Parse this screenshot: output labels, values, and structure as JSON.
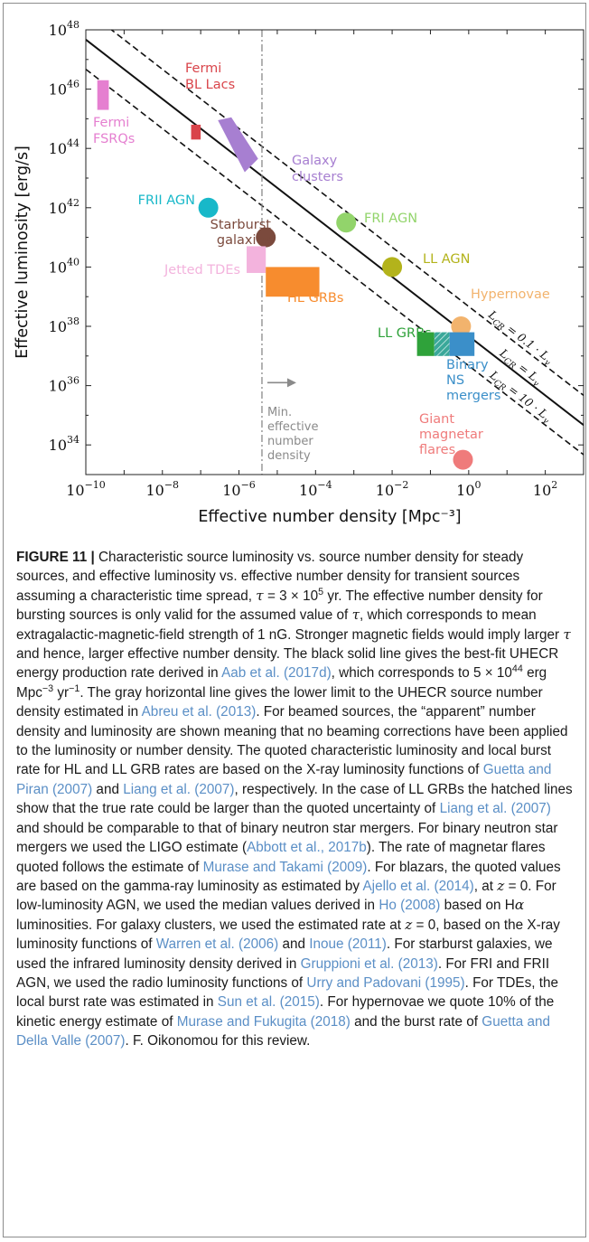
{
  "chart_data": {
    "type": "scatter",
    "xlabel": "Effective number density [Mpc⁻³]",
    "ylabel": "Effective luminosity [erg/s]",
    "x_scale": "log",
    "y_scale": "log",
    "xlim": [
      1e-10,
      1000
    ],
    "ylim": [
      1e+33,
      1e+48
    ],
    "x_ticks": [
      {
        "exp": -10,
        "label": "10",
        "sup": "−10"
      },
      {
        "exp": -8,
        "label": "10",
        "sup": "−8"
      },
      {
        "exp": -6,
        "label": "10",
        "sup": "−6"
      },
      {
        "exp": -4,
        "label": "10",
        "sup": "−4"
      },
      {
        "exp": -2,
        "label": "10",
        "sup": "−2"
      },
      {
        "exp": 0,
        "label": "10",
        "sup": "0"
      },
      {
        "exp": 2,
        "label": "10",
        "sup": "2"
      }
    ],
    "y_ticks": [
      {
        "exp": 34,
        "label": "10",
        "sup": "34"
      },
      {
        "exp": 36,
        "label": "10",
        "sup": "36"
      },
      {
        "exp": 38,
        "label": "10",
        "sup": "38"
      },
      {
        "exp": 40,
        "label": "10",
        "sup": "40"
      },
      {
        "exp": 42,
        "label": "10",
        "sup": "42"
      },
      {
        "exp": 44,
        "label": "10",
        "sup": "44"
      },
      {
        "exp": 46,
        "label": "10",
        "sup": "46"
      },
      {
        "exp": 48,
        "label": "10",
        "sup": "48"
      }
    ],
    "lines": [
      {
        "name": "L_CR = 0.1 · L_γ",
        "style": "dashed",
        "y_at_x1": 38.67,
        "label": "L",
        "label_sub": "CR",
        "label_tail": " = 0.1 · L",
        "label_tail_sub": "γ"
      },
      {
        "name": "L_CR = L_γ",
        "style": "solid",
        "y_at_x1": 37.67,
        "label": "L",
        "label_sub": "CR",
        "label_tail": " = L",
        "label_tail_sub": "γ"
      },
      {
        "name": "L_CR = 10 · L_γ",
        "style": "dashed",
        "y_at_x1": 36.67,
        "label": "L",
        "label_sub": "CR",
        "label_tail": " = 10 · L",
        "label_tail_sub": "γ"
      }
    ],
    "min_density": {
      "x_exp": -5.4,
      "label": [
        "Min.",
        "effective",
        "number",
        "density"
      ],
      "color": "#8a8a8a"
    },
    "sources": [
      {
        "shape": "rect",
        "x": [
          -9.7,
          -9.4
        ],
        "y": [
          45.3,
          46.3
        ],
        "color": "#e57fd0",
        "label": [
          "Fermi",
          "FSRQs"
        ],
        "label_color": "#e57fd0"
      },
      {
        "shape": "rect",
        "x": [
          -7.25,
          -7.0
        ],
        "y": [
          44.3,
          44.8
        ],
        "color": "#d9444a",
        "label": [
          "Fermi",
          "BL Lacs"
        ],
        "label_color": "#d9444a"
      },
      {
        "shape": "polygon",
        "points": [
          [
            -6.55,
            44.95
          ],
          [
            -6.2,
            45.05
          ],
          [
            -5.5,
            43.65
          ],
          [
            -5.85,
            43.2
          ]
        ],
        "color": "#a77fd1",
        "label": [
          "Galaxy",
          "clusters"
        ],
        "label_color": "#a77fd1"
      },
      {
        "shape": "circle",
        "x": -6.8,
        "y": 42.0,
        "color": "#18b8c9",
        "label": [
          "FRII AGN"
        ],
        "label_color": "#18b8c9"
      },
      {
        "shape": "circle",
        "x": -5.3,
        "y": 41.0,
        "color": "#7b4a3d",
        "label": [
          "Starburst",
          "galaxies"
        ],
        "label_color": "#7b4a3d"
      },
      {
        "shape": "rect",
        "x": [
          -5.8,
          -5.3
        ],
        "y": [
          39.8,
          40.7
        ],
        "color": "#f3b3dd",
        "label": [
          "Jetted TDEs"
        ],
        "label_color": "#f3b3dd"
      },
      {
        "shape": "rect",
        "x": [
          -5.3,
          -3.9
        ],
        "y": [
          39.0,
          40.0
        ],
        "color": "#f78c2e",
        "label": [
          "HL GRBs"
        ],
        "label_color": "#f78c2e"
      },
      {
        "shape": "circle",
        "x": -3.2,
        "y": 41.5,
        "color": "#92d46b",
        "label": [
          "FRI AGN"
        ],
        "label_color": "#92d46b"
      },
      {
        "shape": "circle",
        "x": -2.0,
        "y": 40.0,
        "color": "#b3b31b",
        "label": [
          "LL AGN"
        ],
        "label_color": "#b3b31b"
      },
      {
        "shape": "circle",
        "x": -0.2,
        "y": 38.0,
        "color": "#f2b36d",
        "label": [
          "Hypernovae"
        ],
        "label_color": "#f2b36d"
      },
      {
        "shape": "rect",
        "x": [
          -1.35,
          -0.9
        ],
        "y": [
          37.0,
          37.8
        ],
        "color": "#2fa23a",
        "label": [
          "LL GRBs"
        ],
        "label_color": "#2fa23a"
      },
      {
        "shape": "rect",
        "x": [
          -0.9,
          -0.5
        ],
        "y": [
          37.0,
          37.8
        ],
        "color": "#3aa89a",
        "hatched": true
      },
      {
        "shape": "rect",
        "x": [
          -0.5,
          0.15
        ],
        "y": [
          37.0,
          37.8
        ],
        "color": "#3b8fc9",
        "label": [
          "Binary",
          "NS",
          "mergers"
        ],
        "label_color": "#3b8fc9"
      },
      {
        "shape": "circle",
        "x": -0.15,
        "y": 33.5,
        "color": "#ef7b7b",
        "label": [
          "Giant",
          "magnetar",
          "flares"
        ],
        "label_color": "#ef7b7b"
      }
    ]
  },
  "caption": {
    "figure_label": "FIGURE 11 |",
    "t1": " Characteristic source luminosity vs. source number density for steady sources, and effective luminosity vs. effective number density for transient sources assuming a characteristic time spread, ",
    "tau": "τ",
    "t2": " = 3 × 10",
    "t2_sup": "5",
    "t3": " yr. The effective number density for bursting sources is only valid for the assumed value of ",
    "t4": ", which corresponds to mean extragalactic-magnetic-field strength of 1 nG. Stronger magnetic fields would imply larger ",
    "t5": " and hence, larger effective number density. The black solid line gives the best-fit UHECR energy production rate derived in ",
    "r1": "Aab et al. (2017d)",
    "t6": ", which corresponds to 5 × 10",
    "t6_sup": "44",
    "t7": " erg Mpc",
    "t7_sup": "−3",
    "t8": " yr",
    "t8_sup": "−1",
    "t9": ". The gray horizontal line gives the lower limit to the UHECR source number density estimated in ",
    "r2": "Abreu et al. (2013)",
    "t10": ". For beamed sources, the “apparent” number density and luminosity are shown meaning that no beaming corrections have been applied to the luminosity or number density. The quoted characteristic luminosity and local burst rate for HL and LL GRB rates are based on the X-ray luminosity functions of ",
    "r3": "Guetta and Piran (2007)",
    "t11": " and ",
    "r4": "Liang et al. (2007)",
    "t12": ", respectively. In the case of LL GRBs the hatched lines show that the true rate could be larger than the quoted uncertainty of ",
    "r5": "Liang et al. (2007)",
    "t13": " and should be comparable to that of binary neutron star mergers. For binary neutron star mergers we used the LIGO estimate (",
    "r6": "Abbott et al., 2017b",
    "t14": "). The rate of magnetar flares quoted follows the estimate of ",
    "r7": "Murase and Takami (2009)",
    "t15": ". For blazars, the quoted values are based on the gamma-ray luminosity as estimated by ",
    "r8": "Ajello et al. (2014)",
    "t16": ", at ",
    "z": "z",
    "t17": " = 0. For low-luminosity AGN, we used the median values derived in ",
    "r9": "Ho (2008)",
    "t18": " based on H",
    "alpha": "α",
    "t19": " luminosities. For galaxy clusters, we used the estimated rate at ",
    "t20": " = 0, based on the X-ray luminosity functions of ",
    "r10": "Warren et al. (2006)",
    "t21": " and ",
    "r11": "Inoue (2011)",
    "t22": ". For starburst galaxies, we used the infrared luminosity density derived in ",
    "r12": "Gruppioni et al. (2013)",
    "t23": ". For FRI and FRII AGN, we used the radio luminosity functions of ",
    "r13": "Urry and Padovani (1995)",
    "t24": ". For TDEs, the local burst rate was estimated in ",
    "r14": "Sun et al. (2015)",
    "t25": ". For hypernovae we quote 10% of the kinetic energy estimate of ",
    "r15": "Murase and Fukugita (2018)",
    "t26": " and the burst rate of ",
    "r16": "Guetta and Della Valle (2007)",
    "t27": ". F. Oikonomou for this review."
  }
}
